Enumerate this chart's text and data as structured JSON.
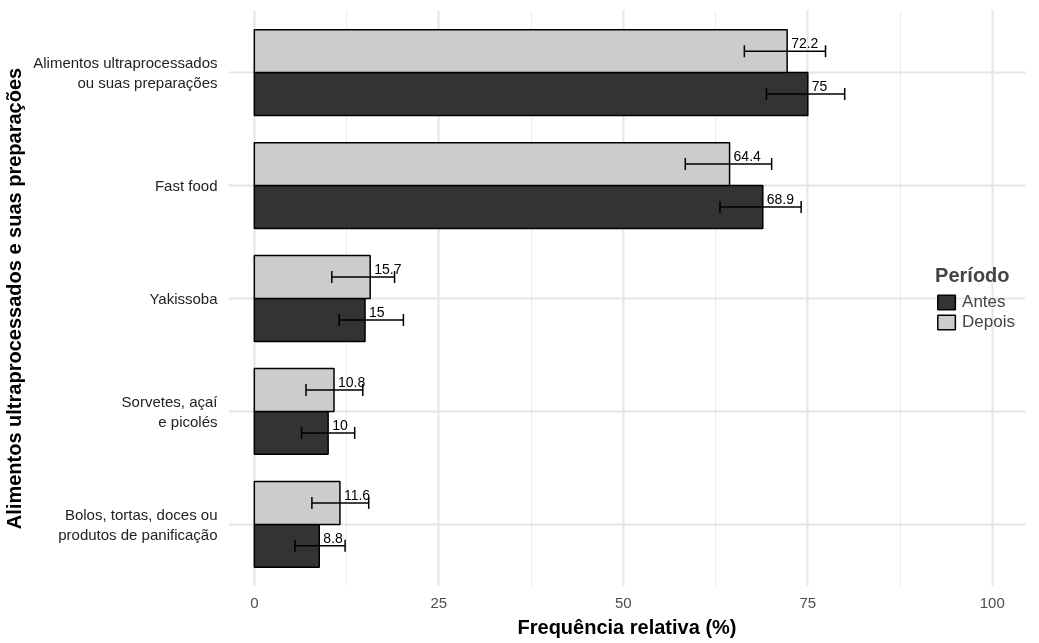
{
  "chart_data": {
    "type": "bar",
    "orientation": "horizontal",
    "xlabel": "Frequência relativa (%)",
    "ylabel": "Alimentos ultraprocessados e suas preparações",
    "legend_title": "Período",
    "categories": [
      "Alimentos ultraprocessados\nou suas preparações",
      "Fast food",
      "Yakissoba",
      "Sorvetes, açaí\ne picolés",
      "Bolos, tortas, doces ou\nprodutos de panificação"
    ],
    "series": [
      {
        "name": "Antes",
        "color": "#333333",
        "values": [
          75,
          68.9,
          15,
          10,
          8.8
        ],
        "errors": [
          [
            69.4,
            80.0
          ],
          [
            63.1,
            74.1
          ],
          [
            11.5,
            20.2
          ],
          [
            6.4,
            13.6
          ],
          [
            5.5,
            12.3
          ]
        ]
      },
      {
        "name": "Depois",
        "color": "#cccccc",
        "values": [
          72.2,
          64.4,
          15.7,
          10.8,
          11.6
        ],
        "errors": [
          [
            66.4,
            77.4
          ],
          [
            58.4,
            70.1
          ],
          [
            10.5,
            19.0
          ],
          [
            7.0,
            14.7
          ],
          [
            7.8,
            15.5
          ]
        ]
      }
    ],
    "xlim": [
      -3.5,
      104.5
    ],
    "xticks": [
      0,
      25,
      50,
      75,
      100
    ],
    "grid": true,
    "legend": "right",
    "data_labels": true
  }
}
